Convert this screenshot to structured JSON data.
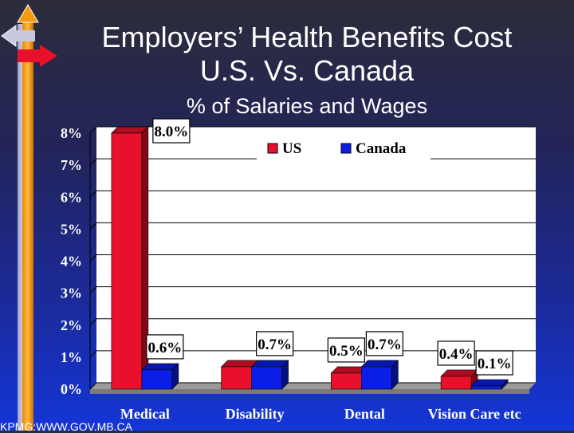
{
  "slide": {
    "title_line1": "Employers’ Health Benefits Cost",
    "title_line2": "U.S. Vs. Canada",
    "subtitle": "% of Salaries and Wages",
    "source": "KPMG:WWW.GOV.MB.CA"
  },
  "colors": {
    "us": "#e8102a",
    "canada": "#0a1ee8",
    "label_text": "#ffffff",
    "plot_bg": "#ffffff"
  },
  "chart_data": {
    "type": "bar",
    "title": "Employers’ Health Benefits Cost U.S. Vs. Canada",
    "subtitle": "% of Salaries and Wages",
    "categories": [
      "Medical",
      "Disability",
      "Dental",
      "Vision Care etc"
    ],
    "series": [
      {
        "name": "US",
        "values": [
          8.0,
          0.7,
          0.5,
          0.4
        ],
        "labels": [
          "8.0%",
          "",
          "0.5%",
          "0.4%"
        ]
      },
      {
        "name": "Canada",
        "values": [
          0.6,
          0.7,
          0.7,
          0.1
        ],
        "labels": [
          "0.6%",
          "0.7%",
          "0.7%",
          "0.1%"
        ]
      }
    ],
    "y_ticks": [
      "0%",
      "1%",
      "2%",
      "3%",
      "4%",
      "5%",
      "6%",
      "7%",
      "8%"
    ],
    "ylim": [
      0,
      8
    ],
    "grid": true,
    "legend": "top-right",
    "xlabel": "",
    "ylabel": ""
  }
}
